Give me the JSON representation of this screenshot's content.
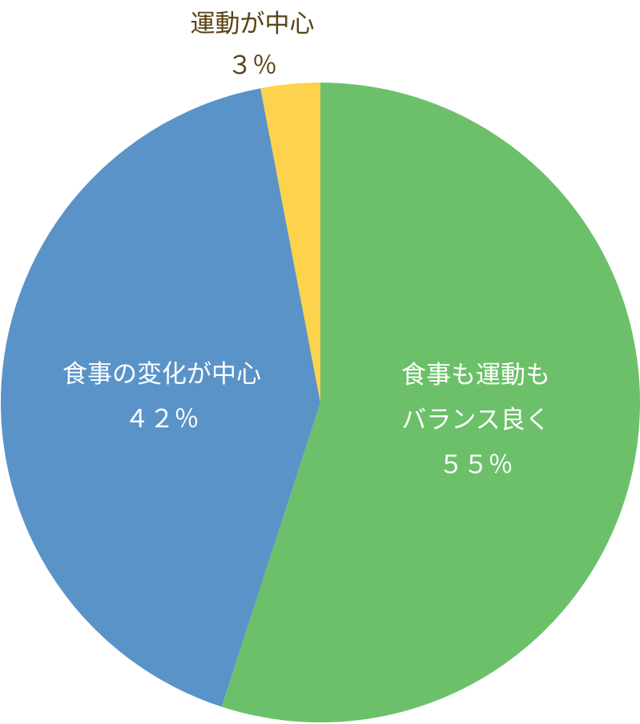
{
  "chart_data": {
    "type": "pie",
    "title": "",
    "slices": [
      {
        "label_lines": [
          "食事も運動も",
          "バランス良く"
        ],
        "value": 55,
        "display_value": "５５％",
        "color": "#6cc06a",
        "label_color": "#ffffff",
        "label_position": "inside"
      },
      {
        "label_lines": [
          "食事の変化が中心"
        ],
        "value": 42,
        "display_value": "４２％",
        "color": "#5a93c8",
        "label_color": "#ffffff",
        "label_position": "inside"
      },
      {
        "label_lines": [
          "運動が中心"
        ],
        "value": 3,
        "display_value": "３％",
        "color": "#fdd24c",
        "label_color": "#5a4315",
        "label_position": "outside-top"
      }
    ]
  }
}
